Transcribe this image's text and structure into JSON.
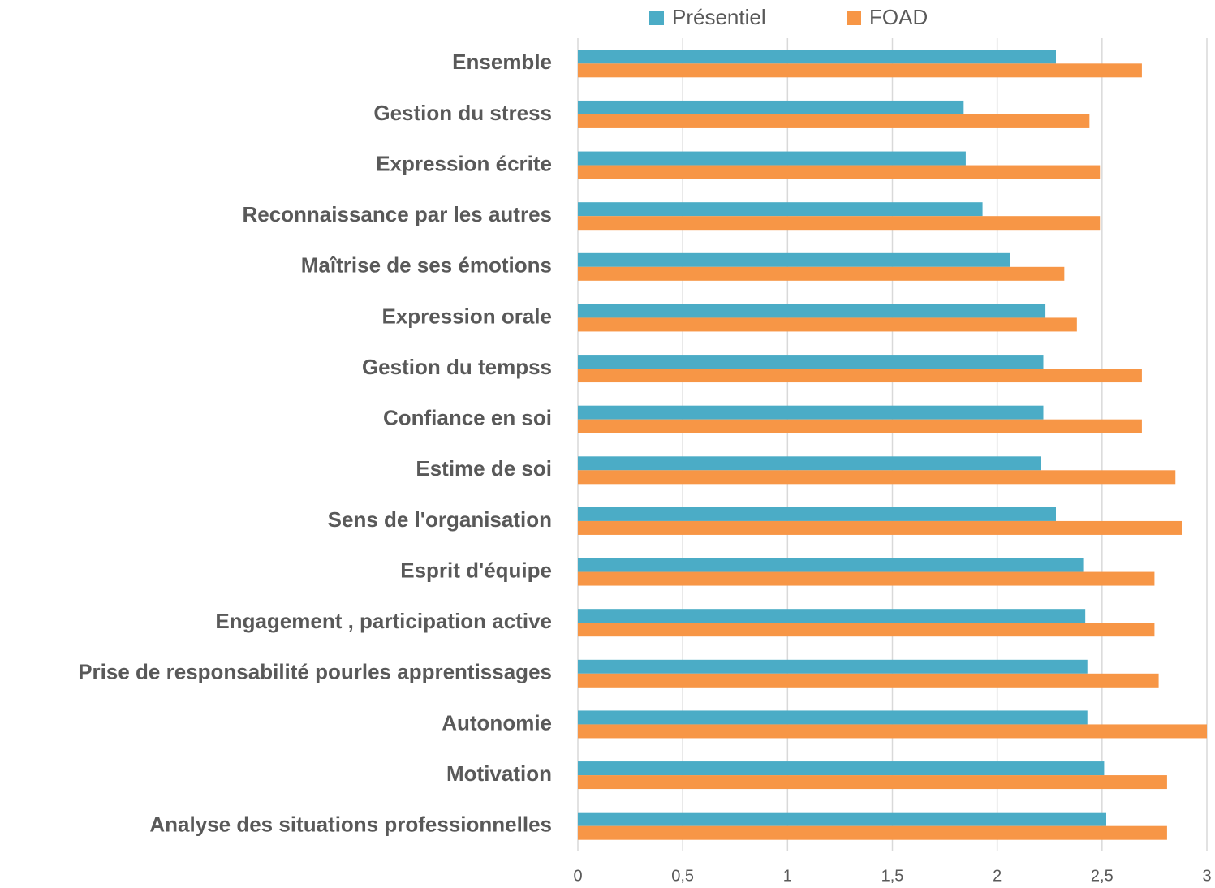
{
  "chart_data": {
    "type": "hbar",
    "categories": [
      "Ensemble",
      "Gestion du stress",
      "Expression écrite",
      "Reconnaissance par les autres",
      "Maîtrise de ses émotions",
      "Expression orale",
      "Gestion du tempss",
      "Confiance en soi",
      "Estime de soi",
      "Sens de l'organisation",
      "Esprit d'équipe",
      "Engagement , participation active",
      "Prise de responsabilité pourles apprentissages",
      "Autonomie",
      "Motivation",
      "Analyse des situations professionnelles"
    ],
    "series": [
      {
        "name": "Présentiel",
        "color": "#4bacc6",
        "values": [
          2.28,
          1.84,
          1.85,
          1.93,
          2.06,
          2.23,
          2.22,
          2.22,
          2.21,
          2.28,
          2.41,
          2.42,
          2.43,
          2.43,
          2.51,
          2.52
        ]
      },
      {
        "name": "FOAD",
        "color": "#f79646",
        "values": [
          2.69,
          2.44,
          2.49,
          2.49,
          2.32,
          2.38,
          2.69,
          2.69,
          2.85,
          2.88,
          2.75,
          2.75,
          2.77,
          3,
          2.81,
          2.81
        ]
      }
    ],
    "xlim": [
      0,
      3
    ],
    "xticks": [
      0,
      {
        "value": 0.5,
        "label": "0,5"
      },
      1,
      {
        "value": 1.5,
        "label": "1,5"
      },
      2,
      {
        "value": 2.5,
        "label": "2,5"
      },
      3
    ],
    "grid": true,
    "legend": "top"
  }
}
